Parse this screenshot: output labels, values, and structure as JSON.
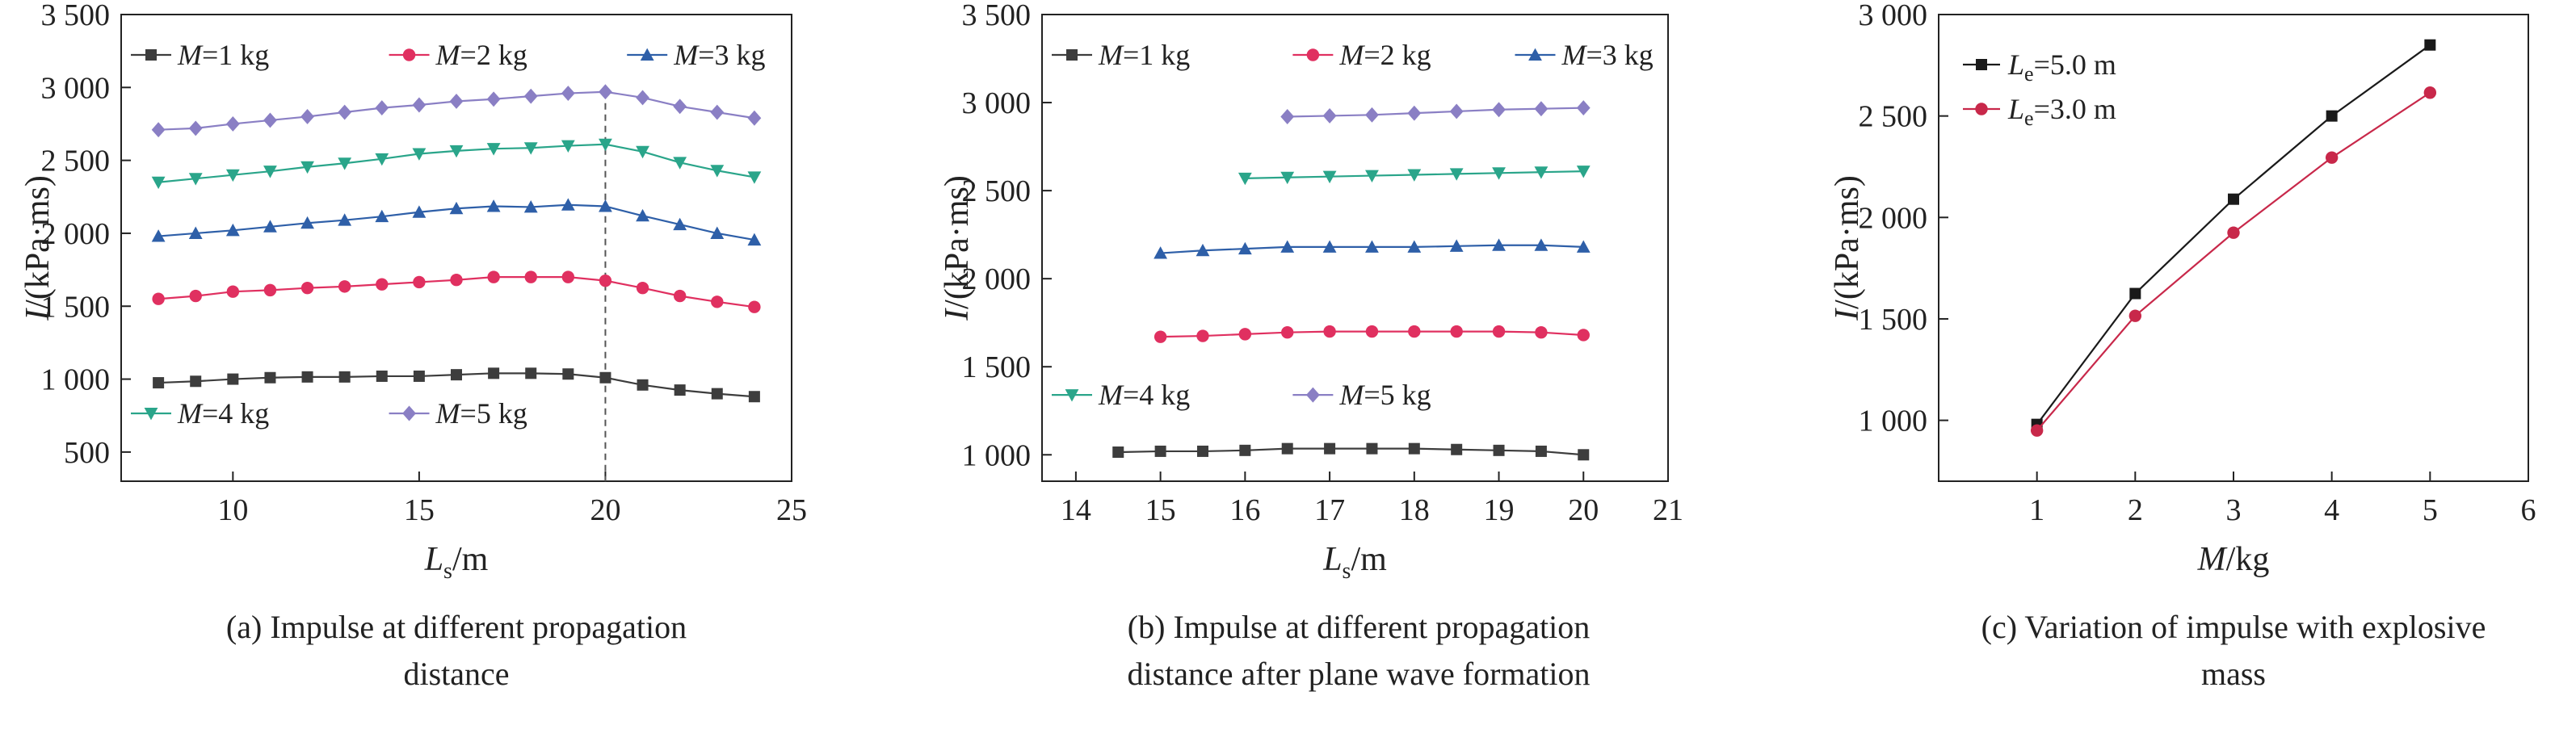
{
  "colors": {
    "m1": "#3d3d3d",
    "m2": "#e03060",
    "m3": "#2e5fa8",
    "m4": "#2aa58a",
    "m5": "#8a7fc4",
    "le5": "#1a1a1a",
    "le3": "#c8284a"
  },
  "chart_data": [
    {
      "type": "line",
      "xlabel": {
        "main": "L",
        "sub": "s",
        "unit": "/m"
      },
      "ylabel": {
        "main": "I",
        "unit": "/(kPa·ms)"
      },
      "xlim": [
        7,
        25
      ],
      "ylim": [
        300,
        3500
      ],
      "xticks": [
        10,
        15,
        20,
        25
      ],
      "yticks": [
        500,
        1000,
        1500,
        2000,
        2500,
        3000,
        3500
      ],
      "ytick_labels": [
        "500",
        "1 000",
        "1 500",
        "2 000",
        "2 500",
        "3 000",
        "3 500"
      ],
      "vline": 20,
      "caption": [
        "(a) Impulse at different propagation",
        "distance"
      ],
      "x": [
        8,
        9,
        10,
        11,
        12,
        13,
        14,
        15,
        16,
        17,
        18,
        19,
        20,
        21,
        22,
        23,
        24
      ],
      "series": [
        {
          "name": "M=1 kg",
          "mass": "1",
          "color_key": "m1",
          "marker": "square",
          "values": [
            975,
            985,
            1000,
            1010,
            1015,
            1015,
            1020,
            1020,
            1030,
            1040,
            1040,
            1035,
            1010,
            960,
            925,
            900,
            880
          ]
        },
        {
          "name": "M=2 kg",
          "mass": "2",
          "color_key": "m2",
          "marker": "circle",
          "values": [
            1550,
            1570,
            1600,
            1610,
            1625,
            1635,
            1650,
            1665,
            1680,
            1700,
            1700,
            1700,
            1675,
            1625,
            1570,
            1530,
            1495
          ]
        },
        {
          "name": "M=3 kg",
          "mass": "3",
          "color_key": "m3",
          "marker": "triangle-up",
          "values": [
            1980,
            2000,
            2020,
            2045,
            2070,
            2090,
            2115,
            2145,
            2170,
            2185,
            2180,
            2195,
            2185,
            2120,
            2060,
            2000,
            1955
          ]
        },
        {
          "name": "M=4 kg",
          "mass": "4",
          "color_key": "m4",
          "marker": "triangle-down",
          "values": [
            2350,
            2375,
            2400,
            2425,
            2455,
            2480,
            2510,
            2545,
            2565,
            2580,
            2585,
            2600,
            2610,
            2560,
            2485,
            2430,
            2385
          ]
        },
        {
          "name": "M=5 kg",
          "mass": "5",
          "color_key": "m5",
          "marker": "diamond",
          "values": [
            2710,
            2720,
            2750,
            2775,
            2800,
            2830,
            2860,
            2880,
            2905,
            2920,
            2940,
            2960,
            2970,
            2930,
            2870,
            2830,
            2790
          ]
        }
      ]
    },
    {
      "type": "line",
      "xlabel": {
        "main": "L",
        "sub": "s",
        "unit": "/m"
      },
      "ylabel": {
        "main": "I",
        "unit": "/(kPa·ms)"
      },
      "xlim": [
        13.6,
        21
      ],
      "ylim": [
        850,
        3500
      ],
      "xticks": [
        14,
        15,
        16,
        17,
        18,
        19,
        20,
        21
      ],
      "yticks": [
        1000,
        1500,
        2000,
        2500,
        3000,
        3500
      ],
      "ytick_labels": [
        "1 000",
        "1 500",
        "2 000",
        "2 500",
        "3 000",
        "3 500"
      ],
      "caption": [
        "(b) Impulse at different propagation",
        "distance after plane wave formation"
      ],
      "series": [
        {
          "name": "M=1 kg",
          "mass": "1",
          "color_key": "m1",
          "marker": "square",
          "x": [
            14.5,
            15,
            15.5,
            16,
            16.5,
            17,
            17.5,
            18,
            18.5,
            19,
            19.5,
            20
          ],
          "values": [
            1015,
            1020,
            1020,
            1025,
            1035,
            1035,
            1035,
            1035,
            1030,
            1025,
            1020,
            1000
          ]
        },
        {
          "name": "M=2 kg",
          "mass": "2",
          "color_key": "m2",
          "marker": "circle",
          "x": [
            15,
            15.5,
            16,
            16.5,
            17,
            17.5,
            18,
            18.5,
            19,
            19.5,
            20
          ],
          "values": [
            1670,
            1675,
            1685,
            1695,
            1700,
            1700,
            1700,
            1700,
            1700,
            1695,
            1680
          ]
        },
        {
          "name": "M=3 kg",
          "mass": "3",
          "color_key": "m3",
          "marker": "triangle-up",
          "x": [
            15,
            15.5,
            16,
            16.5,
            17,
            17.5,
            18,
            18.5,
            19,
            19.5,
            20
          ],
          "values": [
            2145,
            2160,
            2170,
            2180,
            2180,
            2180,
            2180,
            2185,
            2190,
            2190,
            2180
          ]
        },
        {
          "name": "M=4 kg",
          "mass": "4",
          "color_key": "m4",
          "marker": "triangle-down",
          "x": [
            16,
            16.5,
            17,
            17.5,
            18,
            18.5,
            19,
            19.5,
            20
          ],
          "values": [
            2570,
            2575,
            2580,
            2585,
            2590,
            2595,
            2600,
            2605,
            2610
          ]
        },
        {
          "name": "M=5 kg",
          "mass": "5",
          "color_key": "m5",
          "marker": "diamond",
          "x": [
            16.5,
            17,
            17.5,
            18,
            18.5,
            19,
            19.5,
            20
          ],
          "values": [
            2920,
            2925,
            2930,
            2940,
            2950,
            2960,
            2965,
            2970
          ]
        }
      ]
    },
    {
      "type": "line",
      "xlabel": {
        "main": "M",
        "sub": "",
        "unit": "/kg"
      },
      "ylabel": {
        "main": "I",
        "unit": "/(kPa·ms)"
      },
      "xlim": [
        0,
        6
      ],
      "ylim": [
        700,
        3000
      ],
      "xticks": [
        1,
        2,
        3,
        4,
        5,
        6
      ],
      "yticks": [
        1000,
        1500,
        2000,
        2500,
        3000
      ],
      "ytick_labels": [
        "1 000",
        "1 500",
        "2 000",
        "2 500",
        "3 000"
      ],
      "caption": [
        "(c) Variation of impulse with explosive",
        "mass"
      ],
      "x": [
        1,
        2,
        3,
        4,
        5
      ],
      "series": [
        {
          "name": "Le=5.0 m",
          "value_label": "=5.0 m",
          "color_key": "le5",
          "marker": "square",
          "values": [
            980,
            1625,
            2090,
            2500,
            2850
          ]
        },
        {
          "name": "Le=3.0 m",
          "value_label": "=3.0 m",
          "color_key": "le3",
          "marker": "circle",
          "values": [
            950,
            1515,
            1925,
            2295,
            2615
          ]
        }
      ]
    }
  ]
}
